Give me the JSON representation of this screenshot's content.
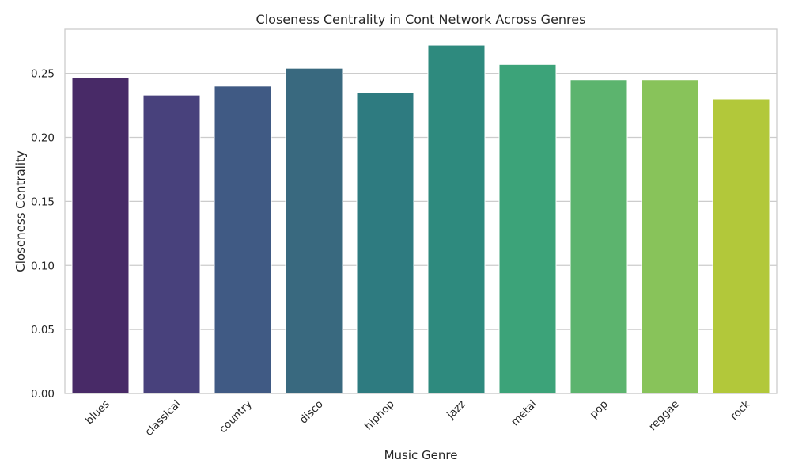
{
  "chart_data": {
    "type": "bar",
    "title": "Closeness Centrality in Cont Network Across Genres",
    "xlabel": "Music Genre",
    "ylabel": "Closeness Centrality",
    "categories": [
      "blues",
      "classical",
      "country",
      "disco",
      "hiphop",
      "jazz",
      "metal",
      "pop",
      "reggae",
      "rock"
    ],
    "values": [
      0.247,
      0.233,
      0.24,
      0.254,
      0.235,
      0.272,
      0.257,
      0.245,
      0.245,
      0.23
    ],
    "colors": [
      "#482a67",
      "#48417c",
      "#405a84",
      "#39697f",
      "#2e7b80",
      "#2e8a7e",
      "#3ca379",
      "#5cb46e",
      "#88c35a",
      "#b2c83a"
    ],
    "ylim": [
      0,
      0.2844
    ],
    "yticks": [
      "0.00",
      "0.05",
      "0.10",
      "0.15",
      "0.20",
      "0.25"
    ],
    "ytick_values": [
      0,
      0.05,
      0.1,
      0.15,
      0.2,
      0.25
    ],
    "grid": true,
    "legend": "none"
  }
}
